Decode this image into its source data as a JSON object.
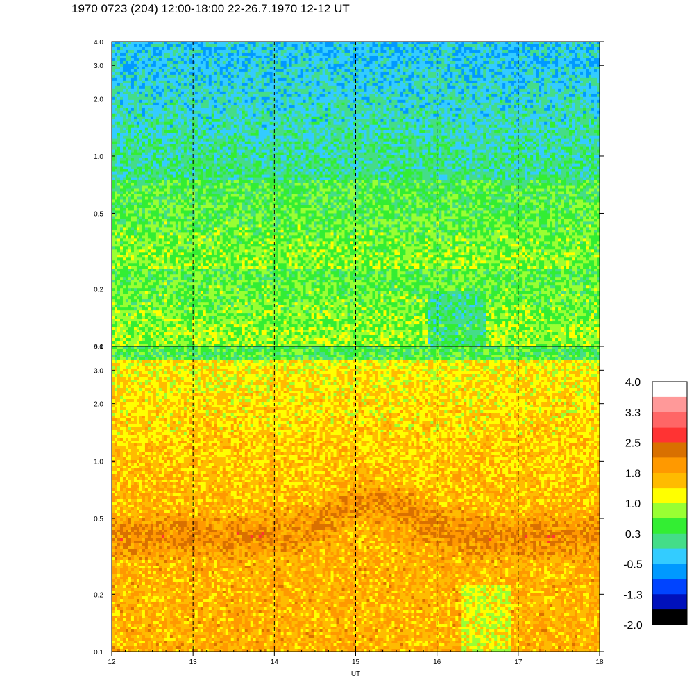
{
  "title": "1970 0723 (204) 12:00-18:00 22-26.7.1970  12-12 UT",
  "chart_data": [
    {
      "type": "heatmap",
      "panel": "top",
      "x_range": [
        12,
        18
      ],
      "y_range": [
        0.1,
        4.0
      ],
      "y_scale": "log",
      "y_ticks": [
        "0.1",
        "0.2",
        "0.5",
        "1.0",
        "2.0",
        "3.0",
        "4.0"
      ],
      "y_tick_values": [
        0.1,
        0.2,
        0.5,
        1.0,
        2.0,
        3.0,
        4.0
      ],
      "hour_markers": [
        13,
        14,
        15,
        16,
        17
      ],
      "dominant_level_low_freq": 0.8,
      "dominant_level_high_freq": -0.4
    },
    {
      "type": "heatmap",
      "panel": "bottom",
      "x_range": [
        12,
        18
      ],
      "y_range": [
        0.1,
        4.0
      ],
      "y_scale": "log",
      "y_ticks": [
        "0.1",
        "0.2",
        "0.5",
        "1.0",
        "2.0",
        "3.0",
        "4.0"
      ],
      "y_tick_values": [
        0.1,
        0.2,
        0.5,
        1.0,
        2.0,
        3.0,
        4.0
      ],
      "xlabel": "UT",
      "x_ticks": [
        "12",
        "13",
        "14",
        "15",
        "16",
        "17",
        "18"
      ],
      "x_tick_values": [
        12,
        13,
        14,
        15,
        16,
        17,
        18
      ],
      "hour_markers": [
        13,
        14,
        15,
        16,
        17
      ],
      "dominant_level_low_freq": 1.7,
      "peak_band_level": 2.1,
      "dominant_level_high_freq": 1.2
    }
  ],
  "colorbar": {
    "labels": [
      "4.0",
      "3.3",
      "2.5",
      "1.8",
      "1.0",
      "0.3",
      "-0.5",
      "-1.3",
      "-2.0"
    ],
    "colors": [
      "#ffffff",
      "#ff9999",
      "#ff6666",
      "#ff3333",
      "#d97000",
      "#ff9900",
      "#ffbb00",
      "#ffff00",
      "#99ff33",
      "#33ee33",
      "#44dd88",
      "#33ccff",
      "#0099ff",
      "#0044ff",
      "#0011bb",
      "#000000"
    ]
  }
}
